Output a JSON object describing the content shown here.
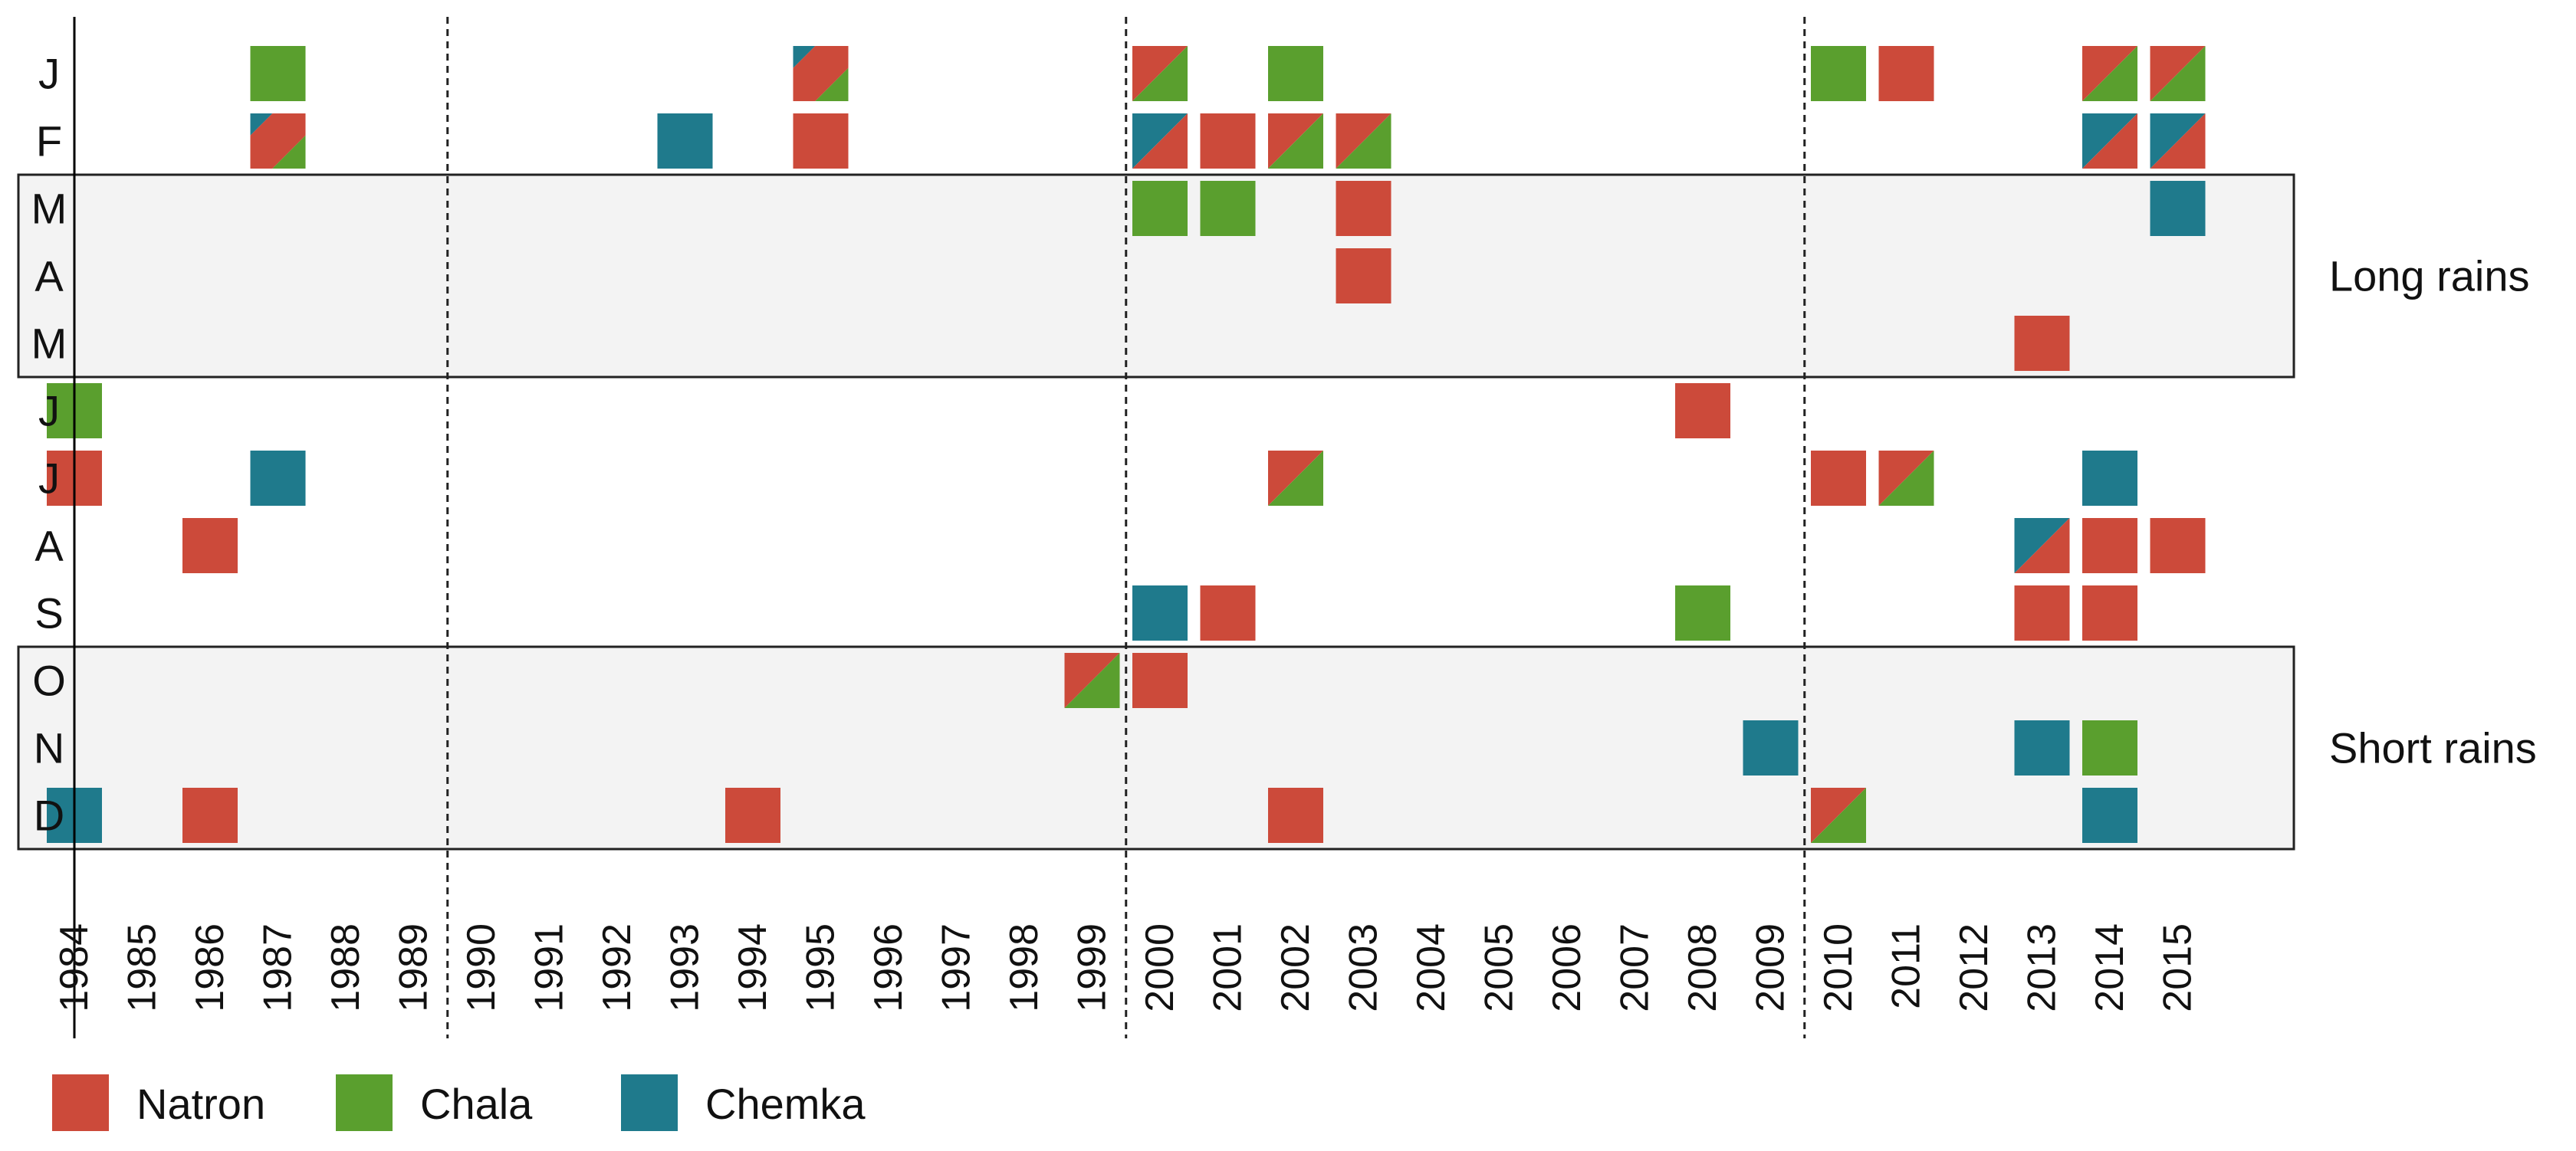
{
  "chart_data": {
    "type": "heatmap",
    "title": "",
    "xlabel": "",
    "ylabel": "",
    "x_categories": [
      "1984",
      "1985",
      "1986",
      "1987",
      "1988",
      "1989",
      "1990",
      "1991",
      "1992",
      "1993",
      "1994",
      "1995",
      "1996",
      "1997",
      "1998",
      "1999",
      "2000",
      "2001",
      "2002",
      "2003",
      "2004",
      "2005",
      "2006",
      "2007",
      "2008",
      "2009",
      "2010",
      "2011",
      "2012",
      "2013",
      "2014",
      "2015"
    ],
    "y_categories": [
      "J",
      "F",
      "M",
      "A",
      "M",
      "J",
      "J",
      "A",
      "S",
      "O",
      "N",
      "D"
    ],
    "decade_separators_after": [
      "1989",
      "1999",
      "2009"
    ],
    "seasons": [
      {
        "label": "Long rains",
        "months": [
          2,
          4
        ]
      },
      {
        "label": "Short rains",
        "months": [
          9,
          11
        ]
      }
    ],
    "series": [
      {
        "name": "Natron",
        "color": "#cc4a3a"
      },
      {
        "name": "Chala",
        "color": "#5a9f2e"
      },
      {
        "name": "Chemka",
        "color": "#1f7a8c"
      }
    ],
    "legend_placement": "bottom-left",
    "cells": [
      {
        "year": "1987",
        "month": 0,
        "lakes": [
          "Chala"
        ]
      },
      {
        "year": "1995",
        "month": 0,
        "lakes": [
          "Chemka",
          "Natron",
          "Chala"
        ]
      },
      {
        "year": "2000",
        "month": 0,
        "lakes": [
          "Natron",
          "Chala"
        ]
      },
      {
        "year": "2002",
        "month": 0,
        "lakes": [
          "Chala"
        ]
      },
      {
        "year": "2010",
        "month": 0,
        "lakes": [
          "Chala"
        ]
      },
      {
        "year": "2011",
        "month": 0,
        "lakes": [
          "Natron"
        ]
      },
      {
        "year": "2014",
        "month": 0,
        "lakes": [
          "Natron",
          "Chala"
        ]
      },
      {
        "year": "2015",
        "month": 0,
        "lakes": [
          "Natron",
          "Chala"
        ]
      },
      {
        "year": "1987",
        "month": 1,
        "lakes": [
          "Chemka",
          "Natron",
          "Chala"
        ]
      },
      {
        "year": "1993",
        "month": 1,
        "lakes": [
          "Chemka"
        ]
      },
      {
        "year": "1995",
        "month": 1,
        "lakes": [
          "Natron"
        ]
      },
      {
        "year": "2000",
        "month": 1,
        "lakes": [
          "Chemka",
          "Natron"
        ]
      },
      {
        "year": "2001",
        "month": 1,
        "lakes": [
          "Natron"
        ]
      },
      {
        "year": "2002",
        "month": 1,
        "lakes": [
          "Natron",
          "Chala"
        ]
      },
      {
        "year": "2003",
        "month": 1,
        "lakes": [
          "Natron",
          "Chala"
        ]
      },
      {
        "year": "2014",
        "month": 1,
        "lakes": [
          "Chemka",
          "Natron"
        ]
      },
      {
        "year": "2015",
        "month": 1,
        "lakes": [
          "Chemka",
          "Natron"
        ]
      },
      {
        "year": "2000",
        "month": 2,
        "lakes": [
          "Chala"
        ]
      },
      {
        "year": "2001",
        "month": 2,
        "lakes": [
          "Chala"
        ]
      },
      {
        "year": "2003",
        "month": 2,
        "lakes": [
          "Natron"
        ]
      },
      {
        "year": "2015",
        "month": 2,
        "lakes": [
          "Chemka"
        ]
      },
      {
        "year": "2003",
        "month": 3,
        "lakes": [
          "Natron"
        ]
      },
      {
        "year": "2013",
        "month": 4,
        "lakes": [
          "Natron"
        ]
      },
      {
        "year": "1984",
        "month": 5,
        "lakes": [
          "Chala"
        ]
      },
      {
        "year": "2008",
        "month": 5,
        "lakes": [
          "Natron"
        ]
      },
      {
        "year": "1984",
        "month": 6,
        "lakes": [
          "Natron"
        ]
      },
      {
        "year": "1987",
        "month": 6,
        "lakes": [
          "Chemka"
        ]
      },
      {
        "year": "2002",
        "month": 6,
        "lakes": [
          "Natron",
          "Chala"
        ]
      },
      {
        "year": "2010",
        "month": 6,
        "lakes": [
          "Natron"
        ]
      },
      {
        "year": "2011",
        "month": 6,
        "lakes": [
          "Natron",
          "Chala"
        ]
      },
      {
        "year": "2014",
        "month": 6,
        "lakes": [
          "Chemka"
        ]
      },
      {
        "year": "1986",
        "month": 7,
        "lakes": [
          "Natron"
        ]
      },
      {
        "year": "2013",
        "month": 7,
        "lakes": [
          "Chemka",
          "Natron"
        ]
      },
      {
        "year": "2014",
        "month": 7,
        "lakes": [
          "Natron"
        ]
      },
      {
        "year": "2015",
        "month": 7,
        "lakes": [
          "Natron"
        ]
      },
      {
        "year": "2000",
        "month": 8,
        "lakes": [
          "Chemka"
        ]
      },
      {
        "year": "2001",
        "month": 8,
        "lakes": [
          "Natron"
        ]
      },
      {
        "year": "2008",
        "month": 8,
        "lakes": [
          "Chala"
        ]
      },
      {
        "year": "2013",
        "month": 8,
        "lakes": [
          "Natron"
        ]
      },
      {
        "year": "2014",
        "month": 8,
        "lakes": [
          "Natron"
        ]
      },
      {
        "year": "1999",
        "month": 9,
        "lakes": [
          "Natron",
          "Chala"
        ]
      },
      {
        "year": "2000",
        "month": 9,
        "lakes": [
          "Natron"
        ]
      },
      {
        "year": "2009",
        "month": 10,
        "lakes": [
          "Chemka"
        ]
      },
      {
        "year": "2013",
        "month": 10,
        "lakes": [
          "Chemka"
        ]
      },
      {
        "year": "2014",
        "month": 10,
        "lakes": [
          "Chala"
        ]
      },
      {
        "year": "1984",
        "month": 11,
        "lakes": [
          "Chemka"
        ]
      },
      {
        "year": "1986",
        "month": 11,
        "lakes": [
          "Natron"
        ]
      },
      {
        "year": "1994",
        "month": 11,
        "lakes": [
          "Natron"
        ]
      },
      {
        "year": "2002",
        "month": 11,
        "lakes": [
          "Natron"
        ]
      },
      {
        "year": "2010",
        "month": 11,
        "lakes": [
          "Natron",
          "Chala"
        ]
      },
      {
        "year": "2014",
        "month": 11,
        "lakes": [
          "Chemka"
        ]
      }
    ]
  }
}
